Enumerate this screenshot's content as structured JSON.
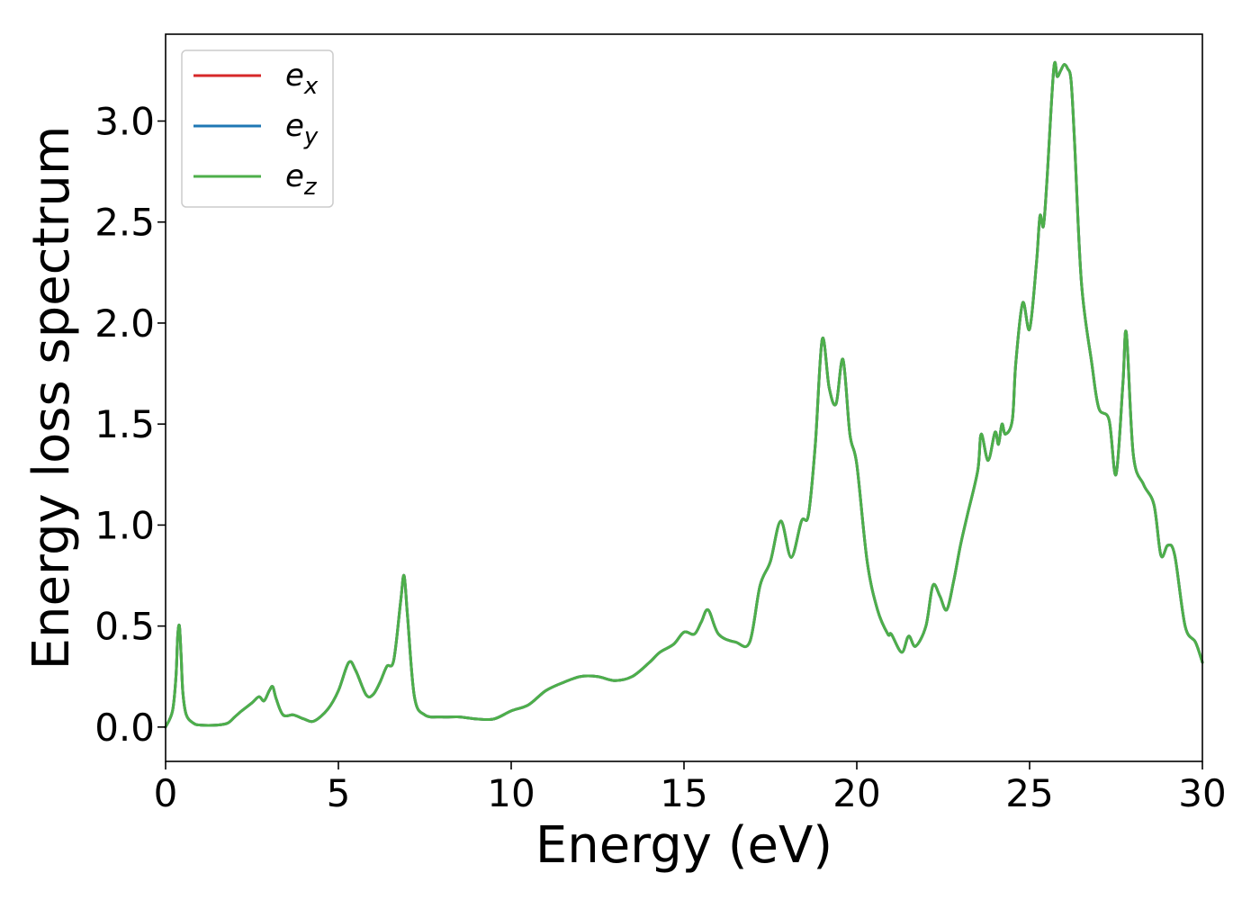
{
  "chart_data": {
    "type": "line",
    "xlabel": "Energy (eV)",
    "ylabel": "Energy loss spectrum",
    "xlim": [
      0,
      30
    ],
    "ylim": [
      -0.17,
      3.43
    ],
    "xticks": [
      0,
      5,
      10,
      15,
      20,
      25,
      30
    ],
    "xtick_labels": [
      "0",
      "5",
      "10",
      "15",
      "20",
      "25",
      "30"
    ],
    "yticks": [
      0.0,
      0.5,
      1.0,
      1.5,
      2.0,
      2.5,
      3.0
    ],
    "ytick_labels": [
      "0.0",
      "0.5",
      "1.0",
      "1.5",
      "2.0",
      "2.5",
      "3.0"
    ],
    "grid": false,
    "legend_position": "top-left",
    "x": [
      0,
      0.2,
      0.3,
      0.35,
      0.4,
      0.45,
      0.5,
      0.6,
      0.8,
      1.0,
      1.5,
      1.8,
      2.0,
      2.2,
      2.5,
      2.7,
      2.85,
      3.0,
      3.1,
      3.2,
      3.4,
      3.7,
      4.0,
      4.3,
      4.7,
      5.0,
      5.3,
      5.5,
      5.8,
      6.0,
      6.2,
      6.4,
      6.6,
      6.8,
      6.9,
      7.0,
      7.2,
      7.5,
      8.0,
      8.5,
      9.0,
      9.5,
      10.0,
      10.5,
      11.0,
      11.5,
      12.0,
      12.5,
      13.0,
      13.5,
      14.0,
      14.3,
      14.7,
      15.0,
      15.3,
      15.5,
      15.7,
      16.0,
      16.5,
      16.9,
      17.2,
      17.5,
      17.8,
      18.1,
      18.4,
      18.6,
      18.8,
      19.0,
      19.2,
      19.4,
      19.6,
      19.8,
      20.0,
      20.3,
      20.6,
      20.9,
      21.0,
      21.3,
      21.5,
      21.7,
      22.0,
      22.2,
      22.4,
      22.6,
      22.8,
      23.0,
      23.2,
      23.5,
      23.6,
      23.8,
      24.0,
      24.1,
      24.2,
      24.3,
      24.5,
      24.6,
      24.8,
      25.0,
      25.2,
      25.3,
      25.4,
      25.5,
      25.7,
      25.8,
      25.9,
      26.0,
      26.1,
      26.2,
      26.3,
      26.5,
      26.8,
      27.0,
      27.3,
      27.5,
      27.7,
      27.8,
      28.0,
      28.3,
      28.6,
      28.8,
      29.0,
      29.2,
      29.5,
      29.8,
      30.0
    ],
    "series": [
      {
        "name": "e_x",
        "color": "#d62728",
        "values": [
          0.0,
          0.08,
          0.25,
          0.45,
          0.5,
          0.35,
          0.17,
          0.06,
          0.02,
          0.01,
          0.01,
          0.02,
          0.05,
          0.08,
          0.12,
          0.15,
          0.13,
          0.18,
          0.2,
          0.14,
          0.06,
          0.06,
          0.04,
          0.03,
          0.09,
          0.18,
          0.32,
          0.28,
          0.16,
          0.16,
          0.22,
          0.3,
          0.33,
          0.62,
          0.75,
          0.55,
          0.15,
          0.06,
          0.05,
          0.05,
          0.04,
          0.04,
          0.08,
          0.11,
          0.18,
          0.22,
          0.25,
          0.25,
          0.23,
          0.25,
          0.32,
          0.37,
          0.41,
          0.47,
          0.46,
          0.52,
          0.58,
          0.46,
          0.42,
          0.42,
          0.7,
          0.82,
          1.02,
          0.84,
          1.02,
          1.05,
          1.4,
          1.92,
          1.68,
          1.6,
          1.82,
          1.45,
          1.3,
          0.82,
          0.58,
          0.46,
          0.46,
          0.37,
          0.45,
          0.4,
          0.5,
          0.7,
          0.65,
          0.58,
          0.72,
          0.9,
          1.05,
          1.27,
          1.45,
          1.32,
          1.46,
          1.4,
          1.5,
          1.45,
          1.52,
          1.8,
          2.1,
          1.97,
          2.3,
          2.53,
          2.48,
          2.7,
          3.26,
          3.22,
          3.25,
          3.28,
          3.26,
          3.2,
          2.9,
          2.2,
          1.8,
          1.58,
          1.52,
          1.25,
          1.7,
          1.95,
          1.35,
          1.2,
          1.1,
          0.85,
          0.9,
          0.85,
          0.5,
          0.42,
          0.32
        ]
      },
      {
        "name": "e_y",
        "color": "#1f77b4",
        "values": [
          0.0,
          0.08,
          0.25,
          0.45,
          0.5,
          0.35,
          0.17,
          0.06,
          0.02,
          0.01,
          0.01,
          0.02,
          0.05,
          0.08,
          0.12,
          0.15,
          0.13,
          0.18,
          0.2,
          0.14,
          0.06,
          0.06,
          0.04,
          0.03,
          0.09,
          0.18,
          0.32,
          0.28,
          0.16,
          0.16,
          0.22,
          0.3,
          0.33,
          0.62,
          0.75,
          0.55,
          0.15,
          0.06,
          0.05,
          0.05,
          0.04,
          0.04,
          0.08,
          0.11,
          0.18,
          0.22,
          0.25,
          0.25,
          0.23,
          0.25,
          0.32,
          0.37,
          0.41,
          0.47,
          0.46,
          0.52,
          0.58,
          0.46,
          0.42,
          0.42,
          0.7,
          0.82,
          1.02,
          0.84,
          1.02,
          1.05,
          1.4,
          1.92,
          1.68,
          1.6,
          1.82,
          1.45,
          1.3,
          0.82,
          0.58,
          0.46,
          0.46,
          0.37,
          0.45,
          0.4,
          0.5,
          0.7,
          0.65,
          0.58,
          0.72,
          0.9,
          1.05,
          1.27,
          1.45,
          1.32,
          1.46,
          1.4,
          1.5,
          1.45,
          1.52,
          1.8,
          2.1,
          1.97,
          2.3,
          2.53,
          2.48,
          2.7,
          3.26,
          3.22,
          3.25,
          3.28,
          3.26,
          3.2,
          2.9,
          2.2,
          1.8,
          1.58,
          1.52,
          1.25,
          1.7,
          1.95,
          1.35,
          1.2,
          1.1,
          0.85,
          0.9,
          0.85,
          0.5,
          0.42,
          0.32
        ]
      },
      {
        "name": "e_z",
        "color": "#4daf4a",
        "values": [
          0.0,
          0.08,
          0.25,
          0.45,
          0.5,
          0.35,
          0.17,
          0.06,
          0.02,
          0.01,
          0.01,
          0.02,
          0.05,
          0.08,
          0.12,
          0.15,
          0.13,
          0.18,
          0.2,
          0.14,
          0.06,
          0.06,
          0.04,
          0.03,
          0.09,
          0.18,
          0.32,
          0.28,
          0.16,
          0.16,
          0.22,
          0.3,
          0.33,
          0.62,
          0.75,
          0.55,
          0.15,
          0.06,
          0.05,
          0.05,
          0.04,
          0.04,
          0.08,
          0.11,
          0.18,
          0.22,
          0.25,
          0.25,
          0.23,
          0.25,
          0.32,
          0.37,
          0.41,
          0.47,
          0.46,
          0.52,
          0.58,
          0.46,
          0.42,
          0.42,
          0.7,
          0.82,
          1.02,
          0.84,
          1.02,
          1.05,
          1.4,
          1.92,
          1.68,
          1.6,
          1.82,
          1.45,
          1.3,
          0.82,
          0.58,
          0.46,
          0.46,
          0.37,
          0.45,
          0.4,
          0.5,
          0.7,
          0.65,
          0.58,
          0.72,
          0.9,
          1.05,
          1.27,
          1.45,
          1.32,
          1.46,
          1.4,
          1.5,
          1.45,
          1.52,
          1.8,
          2.1,
          1.97,
          2.3,
          2.53,
          2.48,
          2.7,
          3.26,
          3.22,
          3.25,
          3.28,
          3.26,
          3.2,
          2.9,
          2.2,
          1.8,
          1.58,
          1.52,
          1.25,
          1.7,
          1.95,
          1.35,
          1.2,
          1.1,
          0.85,
          0.9,
          0.85,
          0.5,
          0.42,
          0.32
        ]
      }
    ],
    "legend": [
      {
        "base": "e",
        "sub": "x",
        "color": "#d62728"
      },
      {
        "base": "e",
        "sub": "y",
        "color": "#1f77b4"
      },
      {
        "base": "e",
        "sub": "z",
        "color": "#4daf4a"
      }
    ]
  }
}
